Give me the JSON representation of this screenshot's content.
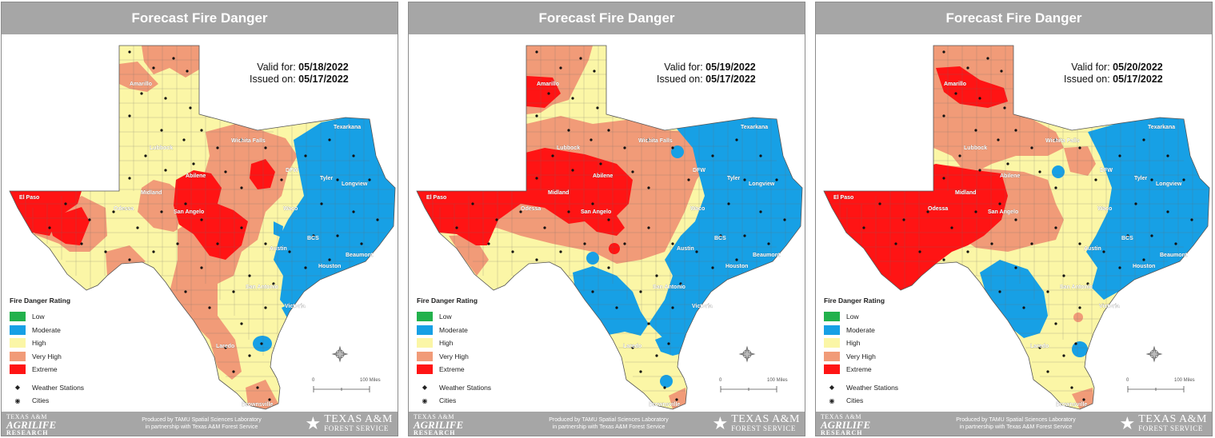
{
  "colors": {
    "low": "#22b14c",
    "moderate": "#17a0e5",
    "high": "#fbf6a6",
    "very_high": "#f19b78",
    "extreme": "#ff1414",
    "header": "#a6a6a6"
  },
  "legend": {
    "title": "Fire Danger Rating",
    "items": [
      "Low",
      "Moderate",
      "High",
      "Very High",
      "Extreme"
    ],
    "stations": "Weather Stations",
    "cities": "Cities"
  },
  "scale": {
    "zero": "0",
    "label": "100 Miles"
  },
  "footer": {
    "agrilife_line1": "TEXAS A&M",
    "agrilife_line2": "AGRILIFE",
    "agrilife_line3": "RESEARCH",
    "produced_line1": "Produced by TAMU Spatial Sciences Laboratory",
    "produced_line2": "in partnership with Texas A&M Forest Service",
    "tamu_line1": "TEXAS A&M",
    "tamu_line2": "FOREST SERVICE"
  },
  "city_names": [
    "Amarillo",
    "Lubbock",
    "Wichita Falls",
    "Texarkana",
    "DFW",
    "Tyler",
    "Longview",
    "Abilene",
    "Midland",
    "Odessa",
    "El Paso",
    "San Angelo",
    "Waco",
    "BCS",
    "Austin",
    "Beaumont",
    "Houston",
    "San Antonio",
    "Victoria",
    "Laredo",
    "Brownsville"
  ],
  "panels": [
    {
      "title": "Forecast Fire Danger",
      "valid_label": "Valid for:",
      "valid_date": "05/18/2022",
      "issued_label": "Issued on:",
      "issued_date": "05/17/2022",
      "regions": [
        {
          "rating": "very_high",
          "area": "north-panhandle"
        },
        {
          "rating": "very_high",
          "area": "north-central"
        },
        {
          "rating": "very_high",
          "area": "central-west"
        },
        {
          "rating": "very_high",
          "area": "far-west"
        },
        {
          "rating": "very_high",
          "area": "south"
        },
        {
          "rating": "extreme",
          "area": "el-paso-trans-pecos"
        },
        {
          "rating": "extreme",
          "area": "abilene-san-angelo"
        },
        {
          "rating": "extreme",
          "area": "dfw-west"
        },
        {
          "rating": "moderate",
          "area": "east"
        },
        {
          "rating": "moderate",
          "area": "coastal-bend"
        }
      ]
    },
    {
      "title": "Forecast Fire Danger",
      "valid_label": "Valid for:",
      "valid_date": "05/19/2022",
      "issued_label": "Issued on:",
      "issued_date": "05/17/2022",
      "regions": [
        {
          "rating": "very_high",
          "area": "north-panhandle"
        },
        {
          "rating": "very_high",
          "area": "rolling-plains"
        },
        {
          "rating": "very_high",
          "area": "central"
        },
        {
          "rating": "very_high",
          "area": "far-west"
        },
        {
          "rating": "extreme",
          "area": "west-central"
        },
        {
          "rating": "extreme",
          "area": "el-paso-trans-pecos"
        },
        {
          "rating": "extreme",
          "area": "amarillo"
        },
        {
          "rating": "moderate",
          "area": "east"
        },
        {
          "rating": "moderate",
          "area": "south"
        }
      ]
    },
    {
      "title": "Forecast Fire Danger",
      "valid_label": "Valid for:",
      "valid_date": "05/20/2022",
      "issued_label": "Issued on:",
      "issued_date": "05/17/2022",
      "regions": [
        {
          "rating": "very_high",
          "area": "panhandle-plains"
        },
        {
          "rating": "very_high",
          "area": "west-central"
        },
        {
          "rating": "extreme",
          "area": "far-west"
        },
        {
          "rating": "extreme",
          "area": "amarillo"
        },
        {
          "rating": "extreme",
          "area": "midland-abilene"
        },
        {
          "rating": "moderate",
          "area": "east"
        },
        {
          "rating": "moderate",
          "area": "south-texas"
        }
      ]
    }
  ]
}
